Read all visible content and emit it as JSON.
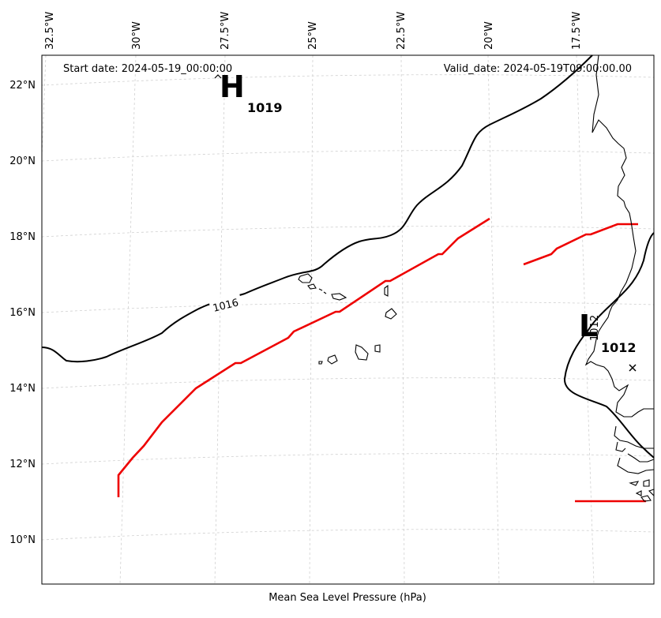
{
  "map": {
    "caption": "Mean Sea Level Pressure (hPa)",
    "start_date_text": "Start date: 2024-05-19_00:00:00",
    "valid_date_text": "Valid_date: 2024-05-19T09:00:00.00",
    "lon_ticks": [
      "32.5°W",
      "30°W",
      "27.5°W",
      "25°W",
      "22.5°W",
      "20°W",
      "17.5°W"
    ],
    "lat_ticks": [
      "22°N",
      "20°N",
      "18°N",
      "16°N",
      "14°N",
      "12°N",
      "10°N"
    ],
    "pressure_centers": [
      {
        "type": "H",
        "letter": "H",
        "value": "1019",
        "lon": -27.2,
        "lat": 22.0
      },
      {
        "type": "L",
        "letter": "L",
        "value": "1012",
        "lon": -17.8,
        "lat": 15.6
      }
    ],
    "isobar_labels": [
      "1016",
      "1012"
    ],
    "colors": {
      "isobar": "#000000",
      "front": "#ee0000",
      "grid": "#d0d0d0",
      "coast": "#000000"
    }
  }
}
